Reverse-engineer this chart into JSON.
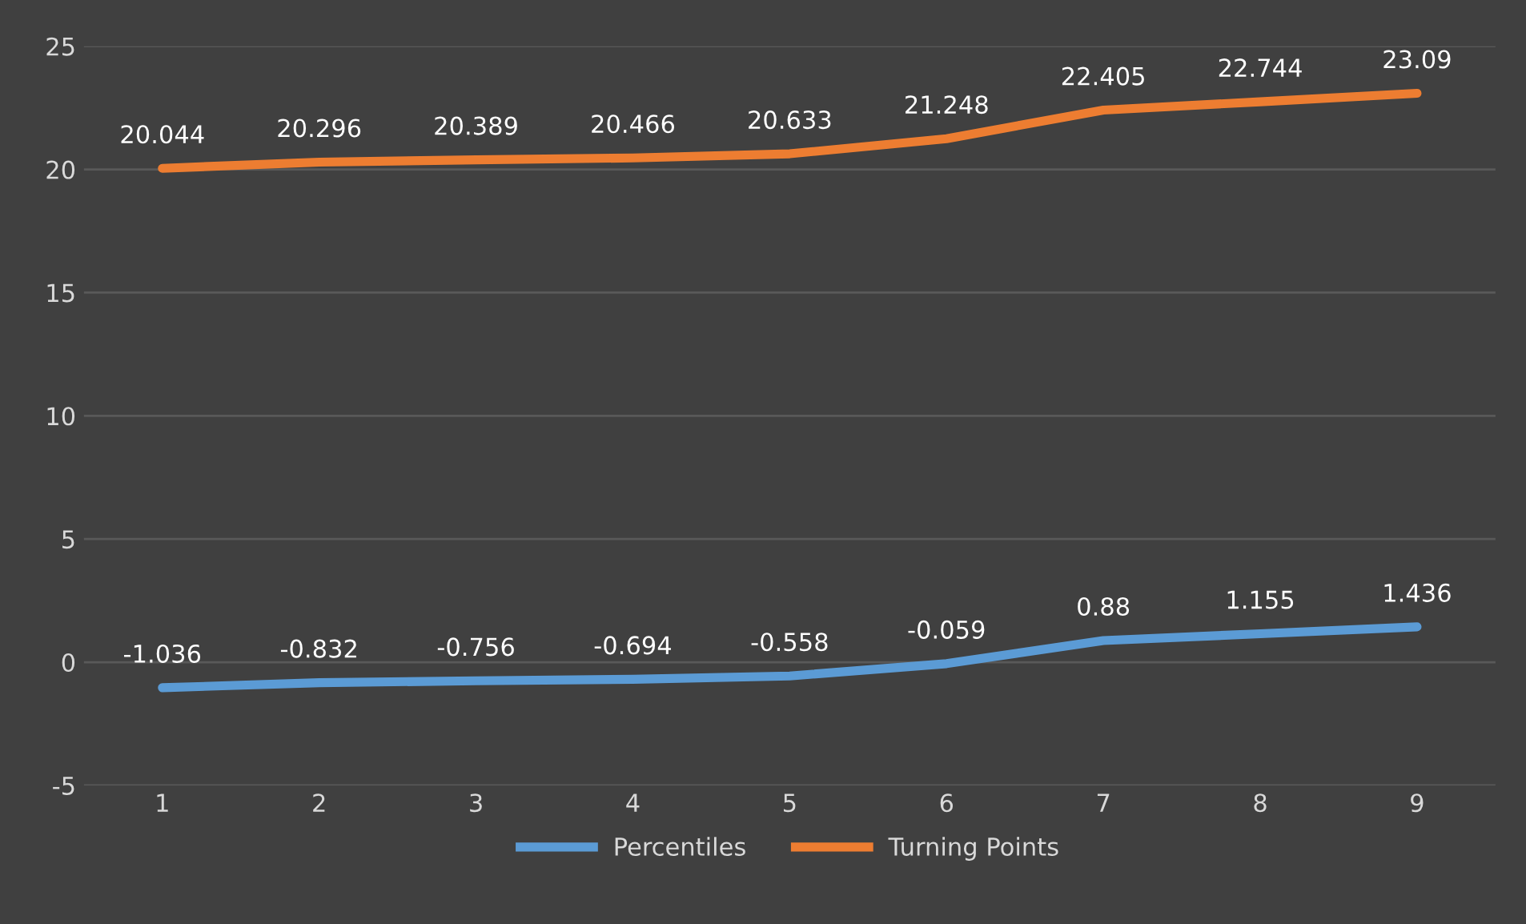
{
  "chart_data": {
    "type": "line",
    "categories": [
      "1",
      "2",
      "3",
      "4",
      "5",
      "6",
      "7",
      "8",
      "9"
    ],
    "series": [
      {
        "name": "Percentiles",
        "color": "#5b9bd5",
        "values": [
          -1.036,
          -0.832,
          -0.756,
          -0.694,
          -0.558,
          -0.059,
          0.88,
          1.155,
          1.436
        ]
      },
      {
        "name": "Turning Points",
        "color": "#ed7d31",
        "values": [
          20.044,
          20.296,
          20.389,
          20.466,
          20.633,
          21.248,
          22.405,
          22.744,
          23.09
        ]
      }
    ],
    "ylim": [
      -5,
      25
    ],
    "yticks": [
      -5,
      0,
      5,
      10,
      15,
      20,
      25
    ],
    "grid": "y",
    "legend": "bottom",
    "data_labels": true,
    "marker": "none",
    "line_style": "solid"
  }
}
